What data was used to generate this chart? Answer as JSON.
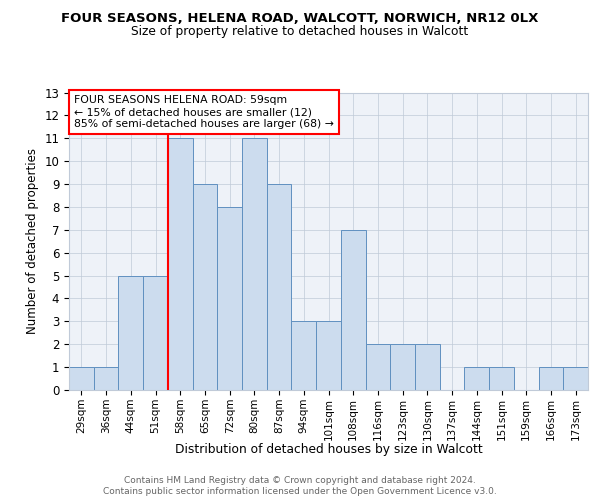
{
  "title1": "FOUR SEASONS, HELENA ROAD, WALCOTT, NORWICH, NR12 0LX",
  "title2": "Size of property relative to detached houses in Walcott",
  "xlabel": "Distribution of detached houses by size in Walcott",
  "ylabel": "Number of detached properties",
  "bins": [
    "29sqm",
    "36sqm",
    "44sqm",
    "51sqm",
    "58sqm",
    "65sqm",
    "72sqm",
    "80sqm",
    "87sqm",
    "94sqm",
    "101sqm",
    "108sqm",
    "116sqm",
    "123sqm",
    "130sqm",
    "137sqm",
    "144sqm",
    "151sqm",
    "159sqm",
    "166sqm",
    "173sqm"
  ],
  "counts": [
    1,
    1,
    5,
    5,
    11,
    9,
    8,
    11,
    9,
    3,
    3,
    7,
    2,
    2,
    2,
    0,
    1,
    1,
    0,
    1,
    1
  ],
  "bar_color": "#ccdcee",
  "bar_edge_color": "#6090c0",
  "red_line_index": 4,
  "annotation_line1": "FOUR SEASONS HELENA ROAD: 59sqm",
  "annotation_line2": "← 15% of detached houses are smaller (12)",
  "annotation_line3": "85% of semi-detached houses are larger (68) →",
  "ylim": [
    0,
    13
  ],
  "yticks": [
    0,
    1,
    2,
    3,
    4,
    5,
    6,
    7,
    8,
    9,
    10,
    11,
    12,
    13
  ],
  "footnote1": "Contains HM Land Registry data © Crown copyright and database right 2024.",
  "footnote2": "Contains public sector information licensed under the Open Government Licence v3.0.",
  "bg_color": "#eef2f8",
  "grid_color": "#c0cad8"
}
